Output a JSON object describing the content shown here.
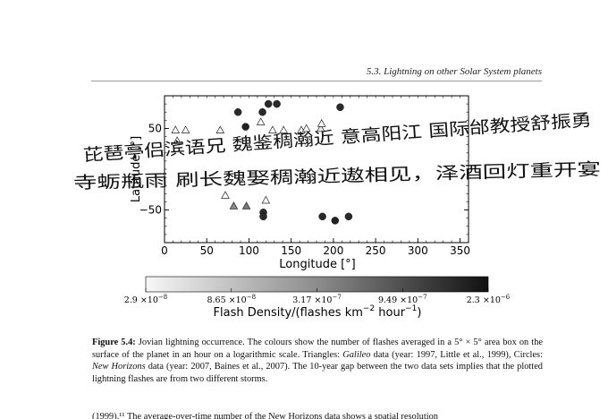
{
  "running_header": "5.3.  Lightning on other Solar System planets",
  "chart_data": {
    "type": "scatter",
    "xlabel": "Longitude [°]",
    "ylabel": "Latitude [°]",
    "xlim": [
      0,
      360
    ],
    "ylim": [
      -90,
      90
    ],
    "xticks": [
      "0",
      "50",
      "100",
      "150",
      "200",
      "250",
      "300",
      "350"
    ],
    "yticks": [
      "50",
      "−50"
    ],
    "ytick_values": [
      50,
      -50
    ],
    "xtick_values": [
      0,
      50,
      100,
      150,
      200,
      250,
      300,
      350
    ],
    "color_scale": "log",
    "colorbar": {
      "label_pre": "Flash Density/(flashes km",
      "label_exp1": "−2",
      "label_mid": " hour",
      "label_exp2": "−1",
      "label_post": ")",
      "ticks": [
        {
          "mant": "2.9",
          "exp": "−8"
        },
        {
          "mant": "8.65",
          "exp": "−8"
        },
        {
          "mant": "3.17",
          "exp": "−7"
        },
        {
          "mant": "9.49",
          "exp": "−7"
        },
        {
          "mant": "2.3",
          "exp": "−6"
        }
      ],
      "range": [
        2.9e-08,
        2.3e-06
      ]
    },
    "series": [
      {
        "name": "Galileo",
        "marker": "triangle",
        "points": [
          {
            "x": 13,
            "y": 48,
            "c": "#ffffff"
          },
          {
            "x": 25,
            "y": 48,
            "c": "#ffffff"
          },
          {
            "x": 15,
            "y": 35,
            "c": "#ffffff"
          },
          {
            "x": 66,
            "y": 48,
            "c": "#f2f2f2"
          },
          {
            "x": 72,
            "y": -32,
            "c": "#ffffff"
          },
          {
            "x": 82,
            "y": -45,
            "c": "#8a8a8a"
          },
          {
            "x": 97,
            "y": -45,
            "c": "#777777"
          },
          {
            "x": 114,
            "y": 58,
            "c": "#ffffff"
          },
          {
            "x": 120,
            "y": -38,
            "c": "#ffffff"
          },
          {
            "x": 128,
            "y": 48,
            "c": "#ffffff"
          },
          {
            "x": 141,
            "y": 48,
            "c": "#ffffff"
          },
          {
            "x": 162,
            "y": 48,
            "c": "#f2f2f2"
          },
          {
            "x": 168,
            "y": 50,
            "c": "#ffffff"
          },
          {
            "x": 185,
            "y": 50,
            "c": "#e8e8e8"
          },
          {
            "x": 186,
            "y": 56,
            "c": "#ffffff"
          }
        ]
      },
      {
        "name": "New Horizons",
        "marker": "circle",
        "points": [
          {
            "x": 87,
            "y": 70,
            "c": "#2a2a2a"
          },
          {
            "x": 96,
            "y": 52,
            "c": "#222222"
          },
          {
            "x": 116,
            "y": 70,
            "c": "#2a2a2a"
          },
          {
            "x": 123,
            "y": 80,
            "c": "#2a2a2a"
          },
          {
            "x": 133,
            "y": 80,
            "c": "#2a2a2a"
          },
          {
            "x": 117,
            "y": -53,
            "c": "#2a2a2a"
          },
          {
            "x": 117,
            "y": -58,
            "c": "#2a2a2a"
          },
          {
            "x": 187,
            "y": -58,
            "c": "#2a2a2a"
          },
          {
            "x": 202,
            "y": -63,
            "c": "#222222"
          },
          {
            "x": 218,
            "y": -58,
            "c": "#2a2a2a"
          },
          {
            "x": 208,
            "y": 76,
            "c": "#2a2a2a"
          }
        ]
      }
    ]
  },
  "handwriting": {
    "line1": "芘琶亭侣滨语兄 魏鉴稠瀚近 意高阳江 国际邰教授舒振勇",
    "line2": "寺蛎瓶雨 刷长魏娶稠瀚近遨相见，泽酒回灯重开宴"
  },
  "caption": {
    "label": "Figure 5.4:",
    "text1": " Jovian lightning occurrence. The colours show the number of flashes averaged in a 5° × 5° area box on the surface of the planet in an hour on a logarithmic scale. Triangles: ",
    "galileo": "Galileo",
    "text2": " data (year: 1997, Little et al., 1999), Circles: ",
    "nh": "New Horizons",
    "text3": " data (year: 2007, Baines et al., 2007). The 10-year gap between the two data sets implies that the plotted lightning flashes are from two different storms."
  },
  "next_paragraph": "(1999).¹¹ The average-over-time number of the New Horizons data shows a spatial resolution"
}
